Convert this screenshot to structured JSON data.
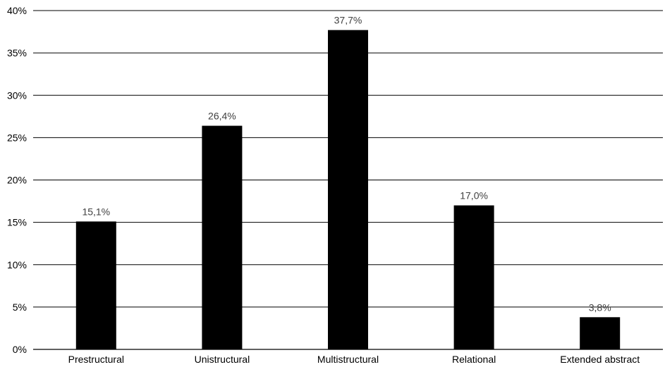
{
  "chart_data": {
    "type": "bar",
    "categories": [
      "Prestructural",
      "Unistructural",
      "Multistructural",
      "Relational",
      "Extended abstract"
    ],
    "values": [
      15.1,
      26.4,
      37.7,
      17.0,
      3.8
    ],
    "data_labels": [
      "15,1%",
      "26,4%",
      "37,7%",
      "17,0%",
      "3,8%"
    ],
    "ylim": [
      0,
      40
    ],
    "yticks": [
      0,
      5,
      10,
      15,
      20,
      25,
      30,
      35,
      40
    ],
    "ytick_labels": [
      "0%",
      "5%",
      "10%",
      "15%",
      "20%",
      "25%",
      "30%",
      "35%",
      "40%"
    ],
    "grid": true,
    "legend": "none",
    "bar_color": "#000000",
    "title": "",
    "xlabel": "",
    "ylabel": ""
  }
}
